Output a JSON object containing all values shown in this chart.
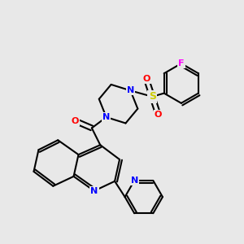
{
  "background_color": "#e8e8e8",
  "bond_color": "#000000",
  "N_color": "#0000ff",
  "O_color": "#ff0000",
  "F_color": "#ff00ff",
  "S_color": "#cccc00",
  "lw": 1.5,
  "fs": 8,
  "figsize": [
    3.0,
    3.0
  ],
  "dpi": 100,
  "xlim": [
    0,
    10
  ],
  "ylim": [
    0,
    10
  ]
}
